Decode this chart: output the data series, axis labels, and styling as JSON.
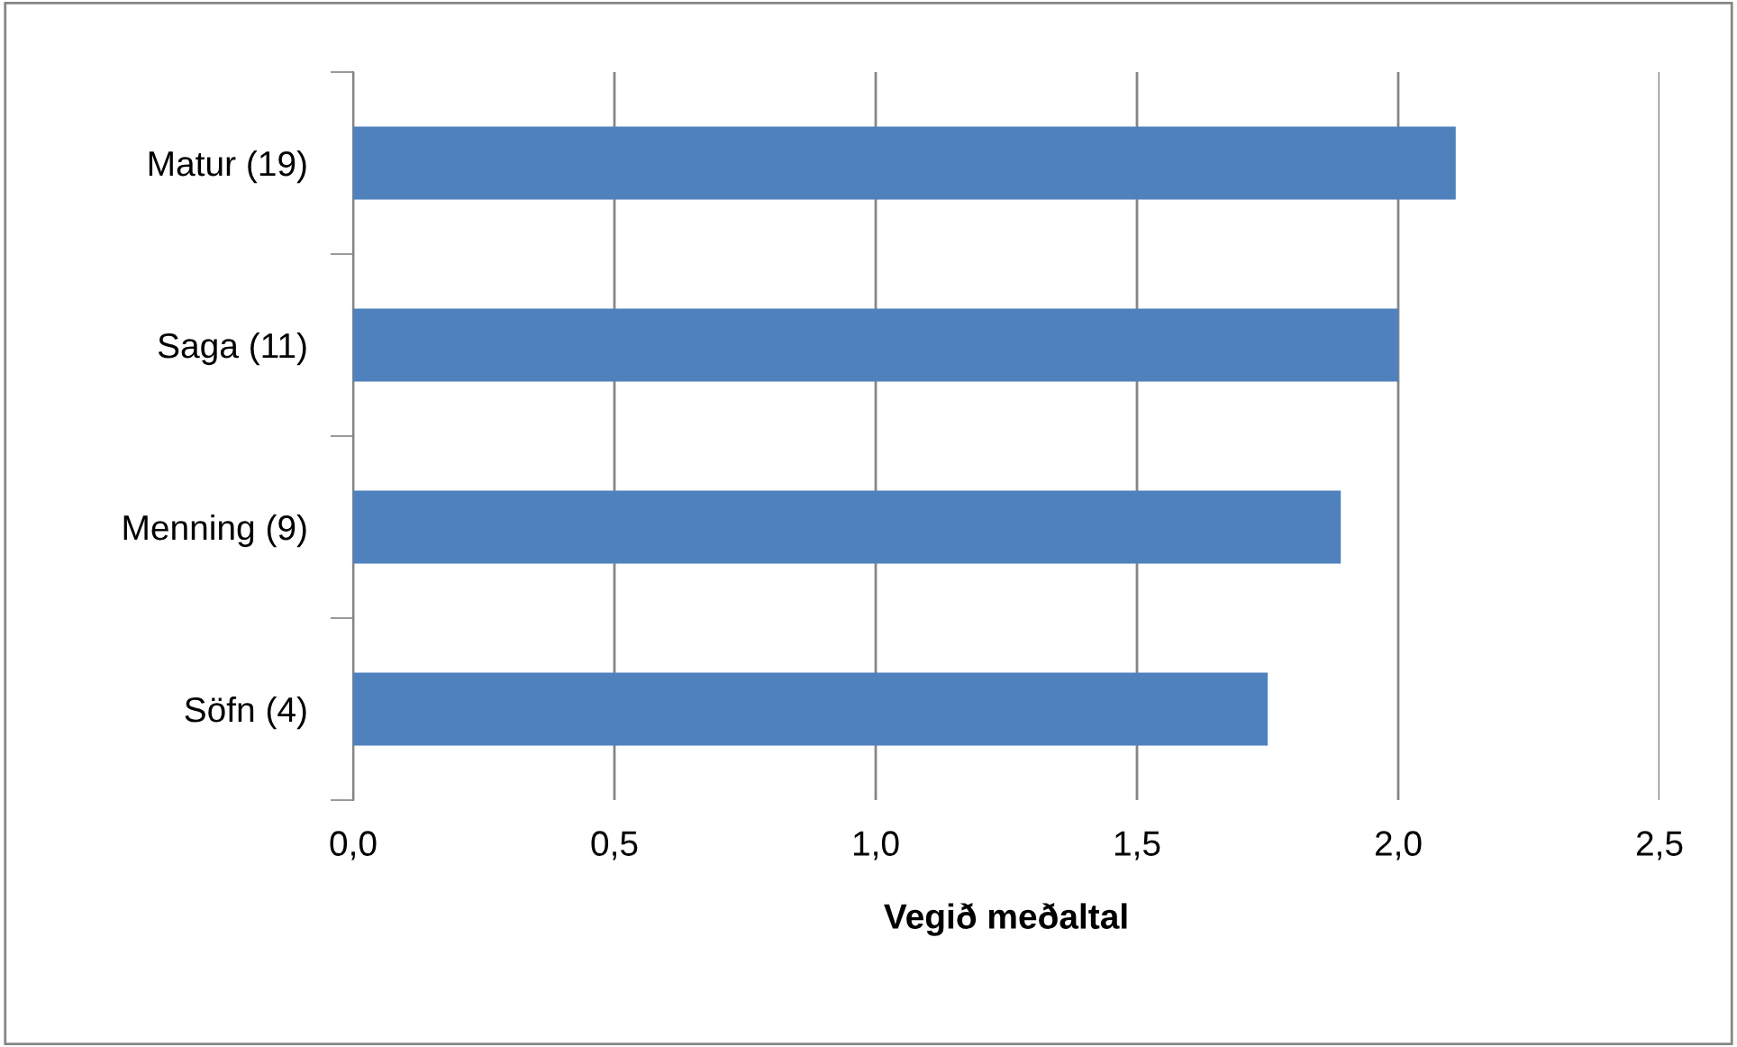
{
  "chart_data": {
    "type": "bar",
    "orientation": "horizontal",
    "xlabel": "Vegið meðaltal",
    "categories": [
      "Matur (19)",
      "Saga (11)",
      "Menning (9)",
      "Söfn (4)"
    ],
    "values": [
      2.11,
      2.0,
      1.89,
      1.75
    ],
    "color": "#4f81bd",
    "xlim": [
      0,
      2.5
    ],
    "xticks": [
      {
        "value": 0,
        "label": "0,0"
      },
      {
        "value": 0.5,
        "label": "0,5"
      },
      {
        "value": 1.0,
        "label": "1,0"
      },
      {
        "value": 1.5,
        "label": "1,5"
      },
      {
        "value": 2.0,
        "label": "2,0"
      },
      {
        "value": 2.5,
        "label": "2,5"
      }
    ],
    "grid": "x",
    "legend": false
  }
}
